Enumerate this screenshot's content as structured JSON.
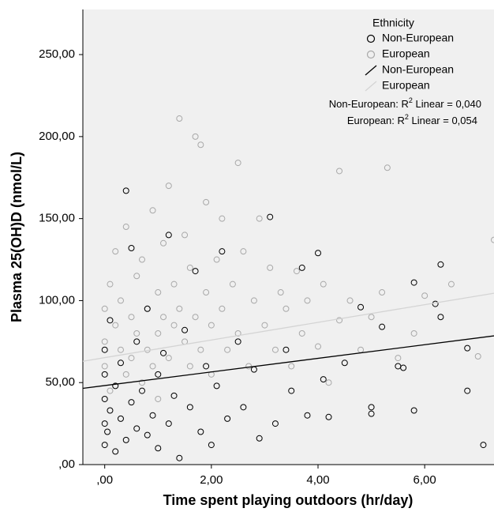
{
  "chart_data": {
    "type": "scatter",
    "x_label": "Time spent playing outdoors (hr/day)",
    "y_label": "Plasma 25(OH)D (nmol/L)",
    "legend_title": "Ethnicity",
    "legend": "upper right",
    "xlim": [
      -0.41,
      7.3
    ],
    "ylim": [
      0,
      277.5
    ],
    "xticks": [
      {
        "value": 0,
        "label": ",00"
      },
      {
        "value": 2,
        "label": "2,00"
      },
      {
        "value": 4,
        "label": "4,00"
      },
      {
        "value": 6,
        "label": "6,00"
      }
    ],
    "yticks": [
      {
        "value": 0,
        "label": ",00"
      },
      {
        "value": 50,
        "label": "50,00"
      },
      {
        "value": 100,
        "label": "100,00"
      },
      {
        "value": 150,
        "label": "150,00"
      },
      {
        "value": 200,
        "label": "200,00"
      },
      {
        "value": 250,
        "label": "250,00"
      }
    ],
    "series": [
      {
        "name": "Non-European",
        "color": "#000000",
        "x": [
          0.0,
          0.0,
          0.0,
          0.0,
          0.0,
          0.05,
          0.1,
          0.1,
          0.2,
          0.2,
          0.3,
          0.3,
          0.4,
          0.4,
          0.5,
          0.5,
          0.6,
          0.6,
          0.7,
          0.8,
          0.8,
          0.9,
          1.0,
          1.0,
          1.1,
          1.2,
          1.2,
          1.3,
          1.4,
          1.5,
          1.6,
          1.7,
          1.8,
          1.9,
          2.0,
          2.1,
          2.2,
          2.3,
          2.5,
          2.6,
          2.8,
          2.9,
          3.1,
          3.2,
          3.4,
          3.5,
          3.7,
          3.8,
          4.0,
          4.1,
          4.2,
          4.5,
          4.8,
          5.0,
          5.0,
          5.2,
          5.5,
          5.6,
          5.8,
          5.8,
          6.2,
          6.3,
          6.3,
          6.8,
          6.8,
          7.1
        ],
        "values": [
          12,
          25,
          40,
          55,
          70,
          20,
          33,
          88,
          8,
          48,
          28,
          62,
          167,
          15,
          132,
          38,
          22,
          75,
          45,
          18,
          95,
          30,
          55,
          10,
          68,
          140,
          25,
          42,
          4,
          82,
          35,
          118,
          20,
          60,
          12,
          48,
          130,
          28,
          75,
          35,
          58,
          16,
          151,
          25,
          70,
          45,
          120,
          30,
          129,
          52,
          29,
          62,
          96,
          35,
          31,
          84,
          60,
          59,
          33,
          111,
          98,
          122,
          90,
          45,
          71,
          12
        ]
      },
      {
        "name": "European",
        "color": "#a8a8a8",
        "x": [
          0.0,
          0.0,
          0.0,
          0.1,
          0.1,
          0.2,
          0.2,
          0.3,
          0.3,
          0.4,
          0.4,
          0.5,
          0.5,
          0.6,
          0.6,
          0.7,
          0.7,
          0.8,
          0.8,
          0.9,
          0.9,
          1.0,
          1.0,
          1.0,
          1.1,
          1.1,
          1.2,
          1.2,
          1.3,
          1.3,
          1.4,
          1.4,
          1.5,
          1.5,
          1.6,
          1.6,
          1.7,
          1.7,
          1.8,
          1.8,
          1.9,
          1.9,
          2.0,
          2.0,
          2.1,
          2.2,
          2.2,
          2.3,
          2.4,
          2.5,
          2.5,
          2.6,
          2.7,
          2.8,
          2.9,
          3.0,
          3.1,
          3.2,
          3.3,
          3.4,
          3.5,
          3.6,
          3.7,
          3.8,
          4.0,
          4.1,
          4.2,
          4.4,
          4.4,
          4.6,
          4.8,
          5.0,
          5.2,
          5.3,
          5.5,
          5.8,
          6.0,
          6.5,
          7.0,
          7.3
        ],
        "values": [
          95,
          60,
          75,
          110,
          45,
          85,
          130,
          70,
          100,
          55,
          145,
          90,
          65,
          115,
          80,
          50,
          125,
          95,
          70,
          155,
          60,
          105,
          80,
          40,
          135,
          90,
          170,
          65,
          110,
          85,
          211,
          95,
          75,
          140,
          60,
          120,
          200,
          90,
          195,
          70,
          105,
          160,
          85,
          55,
          125,
          95,
          150,
          70,
          110,
          184,
          80,
          130,
          60,
          100,
          150,
          85,
          120,
          70,
          105,
          95,
          60,
          118,
          80,
          100,
          72,
          110,
          50,
          88,
          179,
          100,
          70,
          90,
          105,
          181,
          65,
          80,
          103,
          110,
          66,
          137
        ]
      }
    ],
    "fit_lines": [
      {
        "name": "Non-European",
        "color": "#000000",
        "x": [
          -0.41,
          7.3
        ],
        "values": [
          46.5,
          78.5
        ]
      },
      {
        "name": "European",
        "color": "#d4d4d4",
        "x": [
          -0.41,
          7.3
        ],
        "values": [
          63,
          104.5
        ]
      }
    ],
    "annotations": [
      {
        "prefix": "Non-European: R",
        "sup": "2",
        "suffix": " Linear = 0,040"
      },
      {
        "prefix": "European: R",
        "sup": "2",
        "suffix": " Linear = 0,054"
      }
    ]
  }
}
